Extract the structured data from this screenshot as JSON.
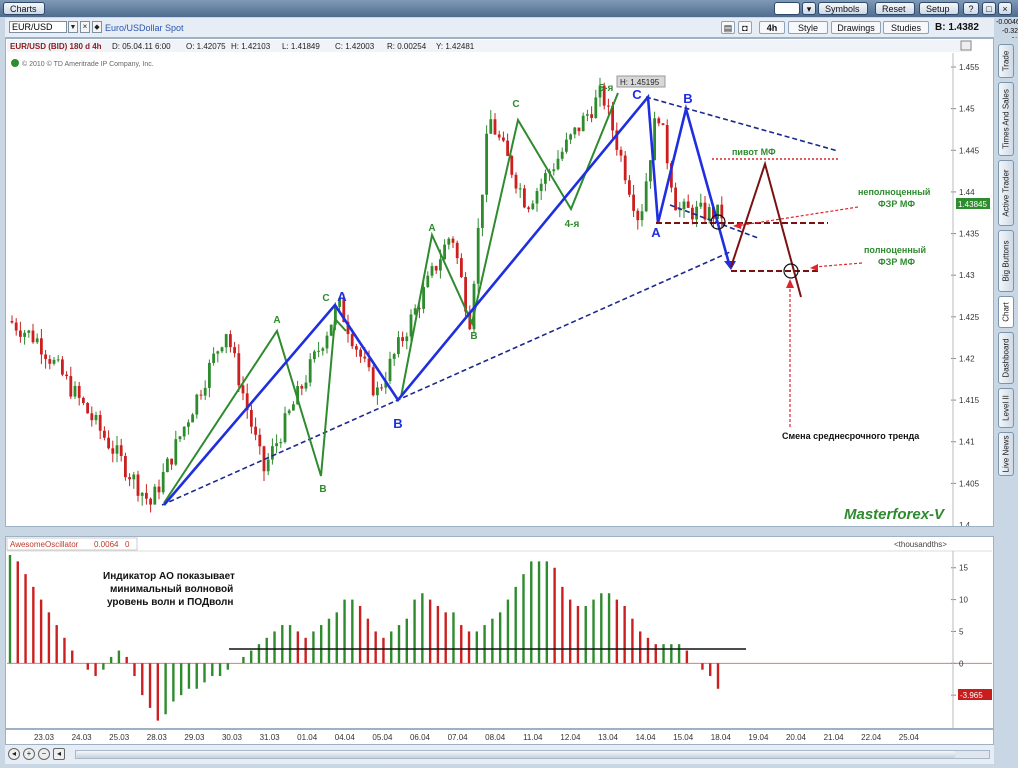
{
  "toolbar": {
    "charts_label": "Charts",
    "symbols_label": "Symbols",
    "reset_label": "Reset",
    "setup_label": "Setup",
    "help_label": "?"
  },
  "symbol_bar": {
    "symbol": "EUR/USD",
    "description": "Euro/USDollar Spot",
    "timeframe": "4h",
    "style_label": "Style",
    "drawings_label": "Drawings",
    "studies_label": "Studies",
    "bid_label": "B: 1.4382",
    "change_abs": "-0.0046",
    "change_pct": "-0.32 %"
  },
  "info_line": {
    "title": "EUR/USD (BID) 180 d 4h",
    "d": "D: 05.04.11 6:00",
    "o": "O: 1.42075",
    "h": "H: 1.42103",
    "l": "L: 1.41849",
    "c": "C: 1.42003",
    "r": "R: 0.00254",
    "y": "Y: 1.42481"
  },
  "copyright": "© 2010 © TD Ameritrade IP Company, Inc.",
  "watermark": "Masterforex-V",
  "high_label": "H: 1.45195",
  "price_tag": "1.43845",
  "osc": {
    "name": "AwesomeOscillator",
    "value": "0.0064",
    "param": "0",
    "units": "<thousandths>",
    "value_tag": "-3.965"
  },
  "sidebar_tabs": [
    "Trade",
    "Times And Sales",
    "Active Trader",
    "Big Buttons",
    "Chart",
    "Dashboard",
    "Level II",
    "Live News"
  ],
  "annotations": {
    "pivot": "пивот МФ",
    "incomplete_1": "неполноценный",
    "incomplete_2": "ФЗР МФ",
    "complete_1": "полноценный",
    "complete_2": "ФЗР МФ",
    "trend_change": "Смена среднесрочного тренда",
    "ao_1": "Индикатор АО показывает",
    "ao_2": "минимальный волновой",
    "ao_3": "уровень волн и ПОДволн"
  },
  "colors": {
    "up": "#2e8b2e",
    "down": "#cc1f1f",
    "wave_green": "#2e8b2e",
    "wave_blue": "#1f2fe0",
    "trend": "#1b2a8c",
    "ffz": "#7a1212",
    "pivot": "#e0242c",
    "watermark": "#2e8b2e"
  },
  "chart_data": [
    {
      "type": "candlestick",
      "title": "EUR/USD (BID) 180 d 4h",
      "x": [
        "23.03",
        "24.03",
        "25.03",
        "28.03",
        "29.03",
        "30.03",
        "31.03",
        "01.04",
        "04.04",
        "05.04",
        "06.04",
        "07.04",
        "08.04",
        "11.04",
        "12.04",
        "13.04",
        "14.04",
        "15.04",
        "18.04",
        "19.04",
        "20.04",
        "21.04",
        "22.04",
        "25.04"
      ],
      "ylim": [
        1.4,
        1.455
      ],
      "yticks": [
        1.4,
        1.405,
        1.41,
        1.415,
        1.42,
        1.425,
        1.43,
        1.435,
        1.44,
        1.445,
        1.45,
        1.455
      ],
      "ohlc_key_points": [
        {
          "date": "23.03",
          "price": 1.4222
        },
        {
          "date": "28.03",
          "price": 1.4025
        },
        {
          "date": "30.03",
          "price": 1.4235
        },
        {
          "date": "31.03",
          "price": 1.4065
        },
        {
          "date": "04.04",
          "price": 1.4265
        },
        {
          "date": "05.04",
          "price": 1.4157
        },
        {
          "date": "07.04",
          "price": 1.4352
        },
        {
          "date": "07.04",
          "price": 1.4245
        },
        {
          "date": "08.04",
          "price": 1.449
        },
        {
          "date": "11.04",
          "price": 1.4385
        },
        {
          "date": "13.04",
          "price": 1.45195
        },
        {
          "date": "14.04",
          "price": 1.4365
        },
        {
          "date": "14.04",
          "price": 1.4502
        },
        {
          "date": "15.04",
          "price": 1.4378
        }
      ],
      "wave_labels": [
        {
          "text": "A",
          "color": "green",
          "date": "30.03",
          "price": 1.4235
        },
        {
          "text": "B",
          "color": "green",
          "date": "31.03",
          "price": 1.4065
        },
        {
          "text": "C",
          "color": "green",
          "date": "04.04",
          "price": 1.4265
        },
        {
          "text": "A",
          "color": "blue",
          "date": "04.04",
          "price": 1.4265
        },
        {
          "text": "B",
          "color": "blue",
          "date": "05.04",
          "price": 1.4157
        },
        {
          "text": "A",
          "color": "green",
          "date": "07.04",
          "price": 1.4352
        },
        {
          "text": "B",
          "color": "green",
          "date": "07.04",
          "price": 1.4245
        },
        {
          "text": "C",
          "color": "green",
          "date": "08.04",
          "price": 1.449
        },
        {
          "text": "4-я",
          "color": "green",
          "date": "11.04",
          "price": 1.4385
        },
        {
          "text": "5-я",
          "color": "green",
          "date": "13.04",
          "price": 1.452
        },
        {
          "text": "C",
          "color": "blue",
          "date": "13.04",
          "price": 1.45195
        },
        {
          "text": "A",
          "color": "blue",
          "date": "14.04",
          "price": 1.4365
        },
        {
          "text": "B",
          "color": "blue",
          "date": "14.04",
          "price": 1.4502
        }
      ],
      "levels": [
        {
          "name": "пивот МФ",
          "price": 1.444
        },
        {
          "name": "неполноценный ФЗР МФ",
          "price": 1.4365
        },
        {
          "name": "полноценный ФЗР МФ",
          "price": 1.4305
        }
      ]
    },
    {
      "type": "bar",
      "title": "AwesomeOscillator",
      "units": "thousandths",
      "ylim": [
        -10,
        17
      ],
      "yticks": [
        -5,
        0,
        5,
        10,
        15
      ],
      "values": [
        17,
        16,
        14,
        12,
        10,
        8,
        6,
        4,
        2,
        0,
        -1,
        -2,
        -1,
        1,
        2,
        1,
        -2,
        -5,
        -7,
        -9,
        -8,
        -6,
        -5,
        -4,
        -4,
        -3,
        -2,
        -2,
        -1,
        0,
        1,
        2,
        3,
        4,
        5,
        6,
        6,
        5,
        4,
        5,
        6,
        7,
        8,
        10,
        10,
        9,
        7,
        5,
        4,
        5,
        6,
        7,
        10,
        11,
        10,
        9,
        8,
        8,
        6,
        5,
        5,
        6,
        7,
        8,
        10,
        12,
        14,
        16,
        16,
        16,
        15,
        12,
        10,
        9,
        9,
        10,
        11,
        11,
        10,
        9,
        7,
        5,
        4,
        3,
        3,
        3,
        3,
        2,
        0,
        -1,
        -2,
        -4
      ]
    }
  ]
}
